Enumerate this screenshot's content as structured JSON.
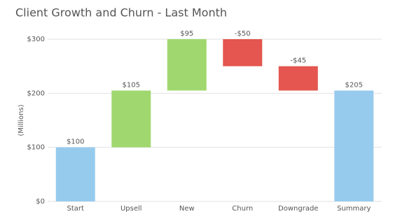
{
  "chart_data": {
    "type": "waterfall",
    "title": "Client Growth and Churn - Last Month",
    "y_label": "(Millions)",
    "categories": [
      "Start",
      "Upsell",
      "New",
      "Churn",
      "Downgrade",
      "Summary"
    ],
    "values": [
      100,
      105,
      95,
      -50,
      -45,
      205
    ],
    "value_labels": [
      "$100",
      "$105",
      "$95",
      "-$50",
      "-$45",
      "$205"
    ],
    "colors": [
      "#97cbee",
      "#a0d86f",
      "#a0d86f",
      "#e4564f",
      "#e4564f",
      "#97cbee"
    ],
    "ylim": [
      0,
      300
    ],
    "yticks": [
      {
        "value": 0,
        "label": "$0"
      },
      {
        "value": 100,
        "label": "$100"
      },
      {
        "value": 200,
        "label": "$200"
      },
      {
        "value": 300,
        "label": "$300"
      }
    ],
    "grid": true
  }
}
